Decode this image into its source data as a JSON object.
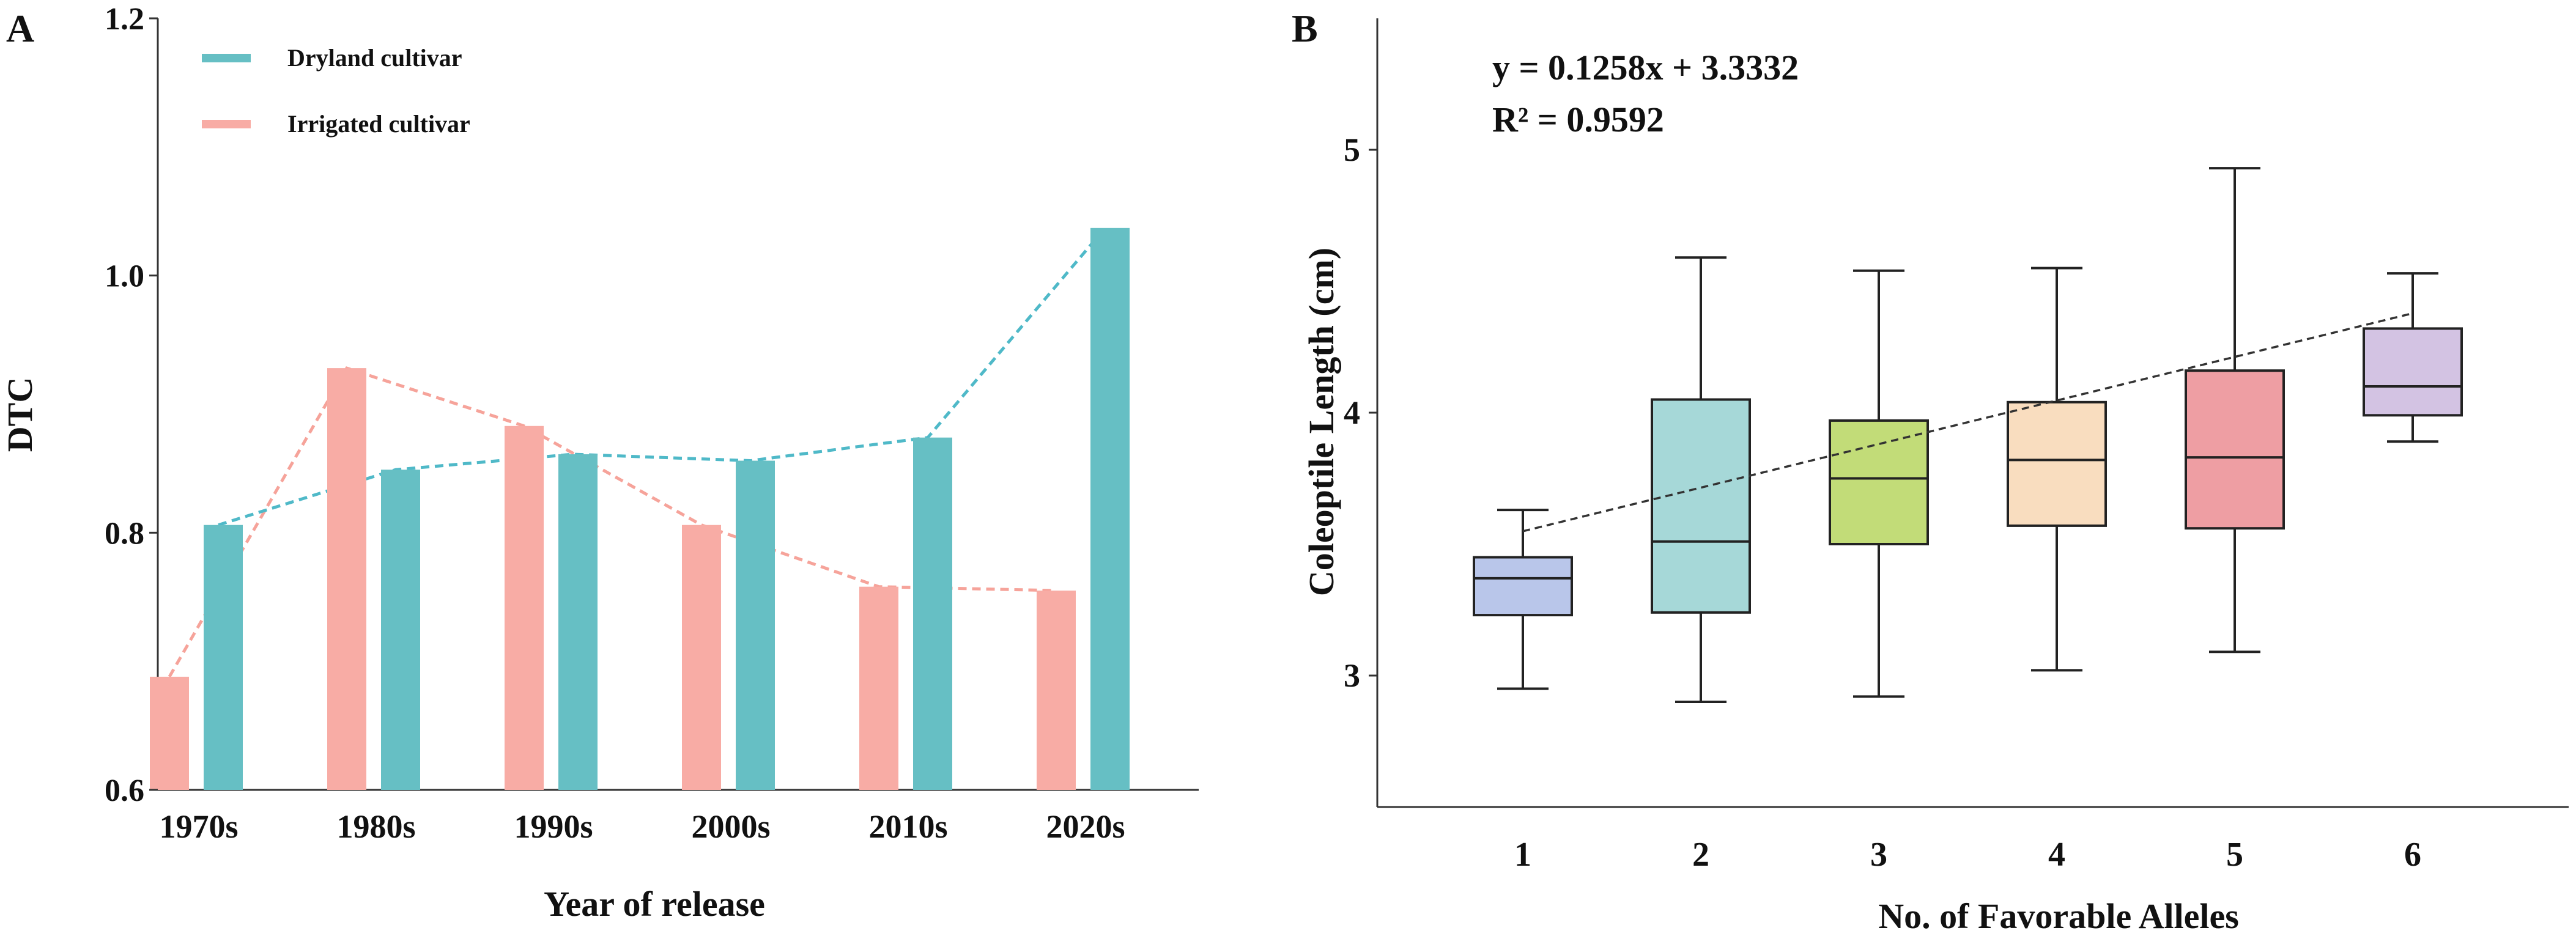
{
  "panels": {
    "a_label": "A",
    "b_label": "B"
  },
  "colors": {
    "dryland": "#66bfc4",
    "irrigated": "#f8aca5",
    "dryland_line": "#4fb9c8",
    "irrigated_line": "#f6a39a",
    "box_fills": [
      "#b9c6ea",
      "#a6d8d8",
      "#c2dc78",
      "#f9ddbf",
      "#ee9ea3",
      "#d3c3e3"
    ],
    "axis": "#333333",
    "trend": "#333333"
  },
  "chart_data": [
    {
      "type": "bar",
      "title": "",
      "xlabel": "Year of release",
      "ylabel": "DTC",
      "ylim": [
        0.6,
        1.2
      ],
      "yticks": [
        "0.6",
        "0.8",
        "1.0",
        "1.2"
      ],
      "ytick_values": [
        0.6,
        0.8,
        1.0,
        1.2
      ],
      "categories": [
        "1970s",
        "1980s",
        "1990s",
        "2000s",
        "2010s",
        "2020s"
      ],
      "series": [
        {
          "name": "Irrigated cultivar",
          "values": [
            0.688,
            0.928,
            0.883,
            0.806,
            0.758,
            0.755
          ]
        },
        {
          "name": "Dryland cultivar",
          "values": [
            0.806,
            0.849,
            0.861,
            0.856,
            0.874,
            1.037
          ]
        }
      ],
      "trend_lines": [
        {
          "name": "Irrigated cultivar",
          "values": [
            0.688,
            0.928,
            0.883,
            0.806,
            0.758,
            0.755
          ]
        },
        {
          "name": "Dryland cultivar",
          "values": [
            0.806,
            0.849,
            0.861,
            0.856,
            0.874,
            1.037
          ]
        }
      ],
      "legend": [
        {
          "label": "Dryland cultivar"
        },
        {
          "label": "Irrigated cultivar"
        }
      ],
      "legend_position": "top-left"
    },
    {
      "type": "box",
      "title": "",
      "xlabel": "No. of Favorable Alleles",
      "ylabel": "Coleoptile Length (cm)",
      "ylim": [
        2.5,
        5.5
      ],
      "yticks": [
        "3",
        "4",
        "5"
      ],
      "ytick_values": [
        3,
        4,
        5
      ],
      "categories": [
        "1",
        "2",
        "3",
        "4",
        "5",
        "6"
      ],
      "boxes": [
        {
          "category": "1",
          "min": 2.95,
          "q1": 3.23,
          "median": 3.37,
          "q3": 3.45,
          "max": 3.63
        },
        {
          "category": "2",
          "min": 2.9,
          "q1": 3.24,
          "median": 3.51,
          "q3": 4.05,
          "max": 4.59
        },
        {
          "category": "3",
          "min": 2.92,
          "q1": 3.5,
          "median": 3.75,
          "q3": 3.97,
          "max": 4.54
        },
        {
          "category": "4",
          "min": 3.02,
          "q1": 3.57,
          "median": 3.82,
          "q3": 4.04,
          "max": 4.55
        },
        {
          "category": "5",
          "min": 3.09,
          "q1": 3.56,
          "median": 3.83,
          "q3": 4.16,
          "max": 4.93
        },
        {
          "category": "6",
          "min": 3.89,
          "q1": 3.99,
          "median": 4.1,
          "q3": 4.32,
          "max": 4.53
        }
      ],
      "trend": {
        "slope": 0.1258,
        "intercept": 3.3332
      },
      "equation_text": "y = 0.1258x + 3.3332",
      "r2_text": "R² = 0.9592"
    }
  ]
}
